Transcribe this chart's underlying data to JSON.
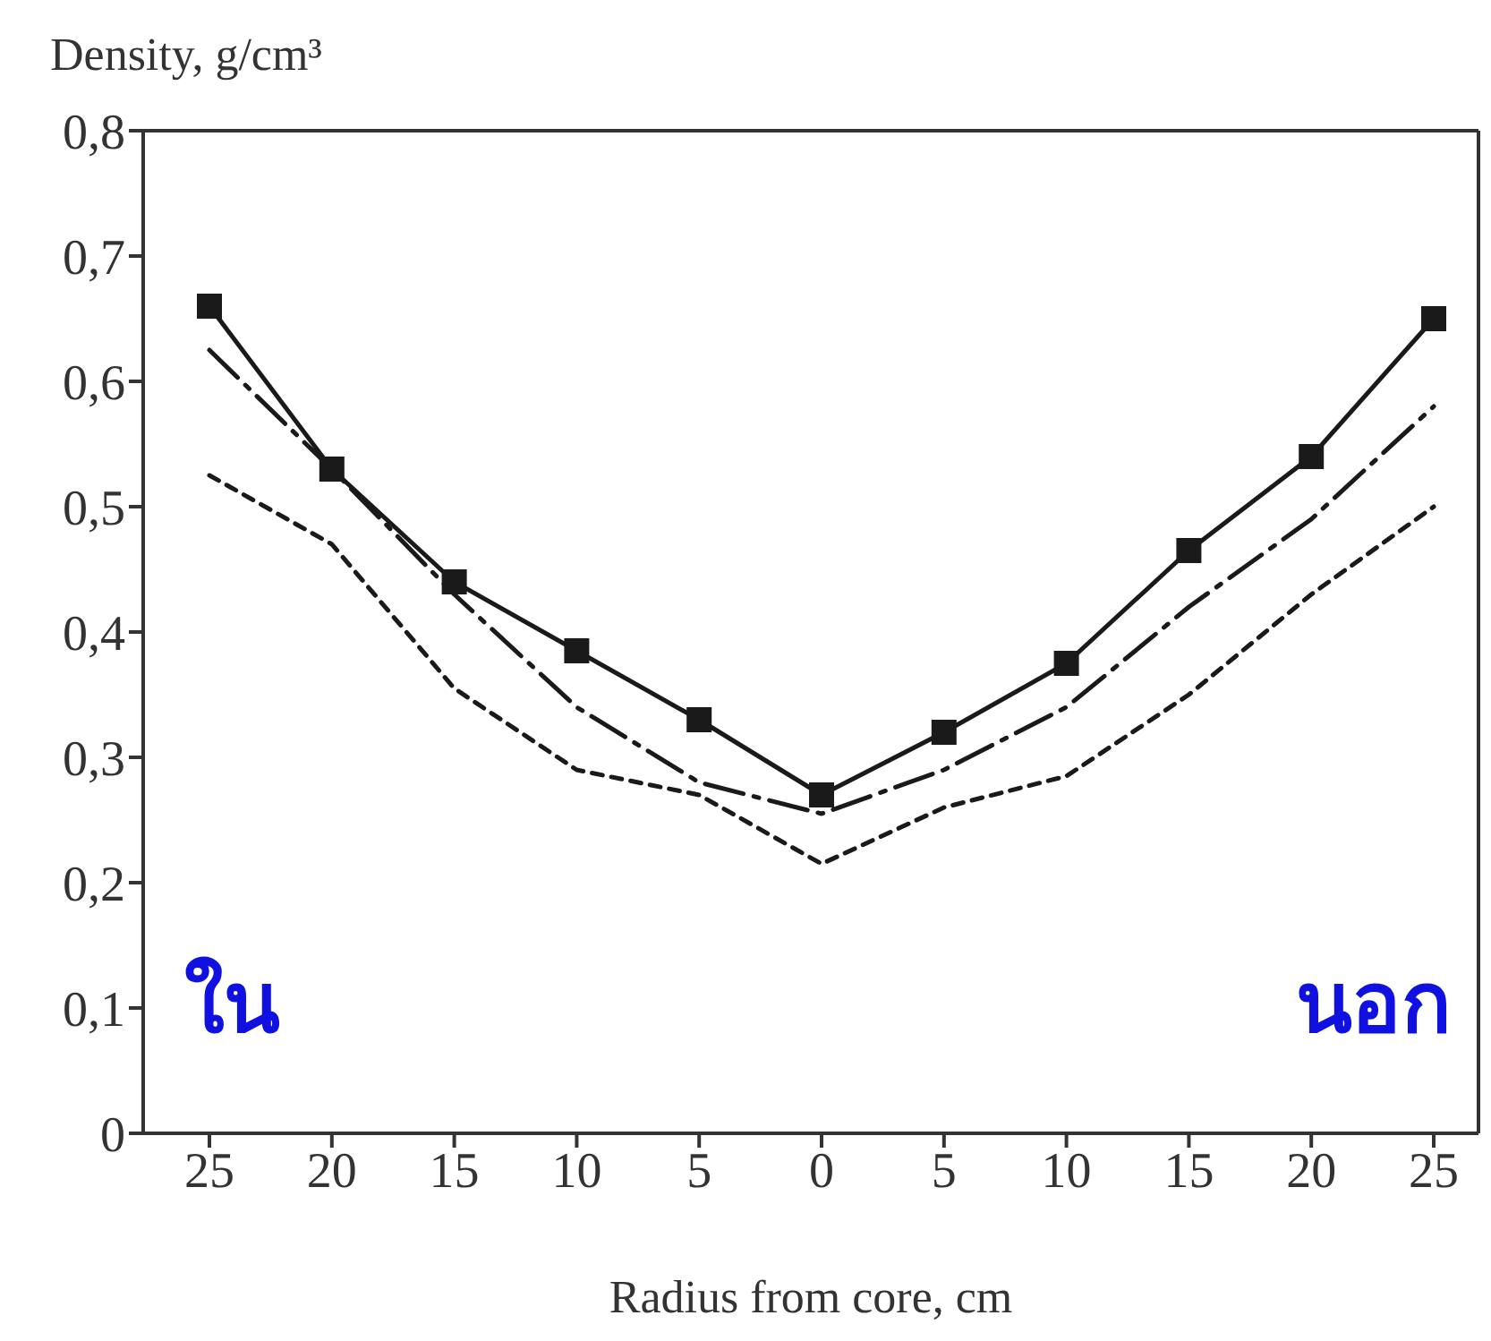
{
  "chart_data": {
    "type": "line",
    "ylabel": "Density, g/cm³",
    "xlabel": "Radius from core, cm",
    "categories": [
      "25",
      "20",
      "15",
      "10",
      "5",
      "0",
      "5",
      "10",
      "15",
      "20",
      "25"
    ],
    "series": [
      {
        "color": "#1a1a1a",
        "marker": "square",
        "line_style": "solid",
        "values": [
          0.66,
          0.53,
          0.44,
          0.385,
          0.33,
          0.27,
          0.32,
          0.375,
          0.465,
          0.54,
          0.65
        ]
      },
      {
        "color": "#1a1a1a",
        "line_style": "dashed",
        "values": [
          0.625,
          0.53,
          0.43,
          0.34,
          0.28,
          0.255,
          0.29,
          0.34,
          0.42,
          0.49,
          0.58
        ]
      },
      {
        "color": "#1a1a1a",
        "line_style": "dotted",
        "values": [
          0.525,
          0.47,
          0.355,
          0.29,
          0.27,
          0.215,
          0.26,
          0.285,
          0.35,
          0.43,
          0.5
        ]
      }
    ],
    "ylim": [
      0,
      0.8
    ],
    "yticks": [
      {
        "value": 0,
        "label": "0"
      },
      {
        "value": 0.1,
        "label": "0,1"
      },
      {
        "value": 0.2,
        "label": "0,2"
      },
      {
        "value": 0.3,
        "label": "0,3"
      },
      {
        "value": 0.4,
        "label": "0,4"
      },
      {
        "value": 0.5,
        "label": "0,5"
      },
      {
        "value": 0.6,
        "label": "0,6"
      },
      {
        "value": 0.7,
        "label": "0,7"
      },
      {
        "value": 0.8,
        "label": "0,8"
      }
    ],
    "annotations": [
      "ใน",
      "นอก"
    ],
    "grid": false,
    "legend": false
  }
}
